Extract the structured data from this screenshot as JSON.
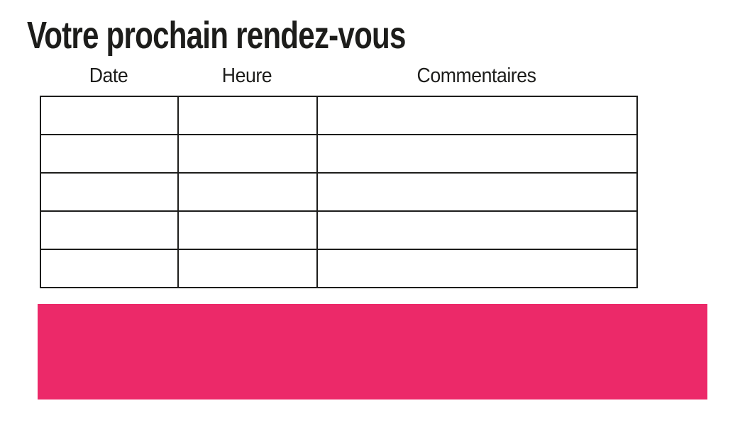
{
  "page": {
    "title": "Votre prochain rendez-vous",
    "background_color": "#ffffff",
    "text_color": "#1d1d1b"
  },
  "appointments_table": {
    "columns": [
      {
        "label": "Date"
      },
      {
        "label": "Heure"
      },
      {
        "label": "Commentaires"
      }
    ],
    "row_count": 5,
    "cells": [
      [
        "",
        "",
        ""
      ],
      [
        "",
        "",
        ""
      ],
      [
        "",
        "",
        ""
      ],
      [
        "",
        "",
        ""
      ],
      [
        "",
        "",
        ""
      ]
    ],
    "border_color": "#1d1d1b"
  },
  "banner": {
    "accent_color": "#EC2969",
    "text": ""
  }
}
